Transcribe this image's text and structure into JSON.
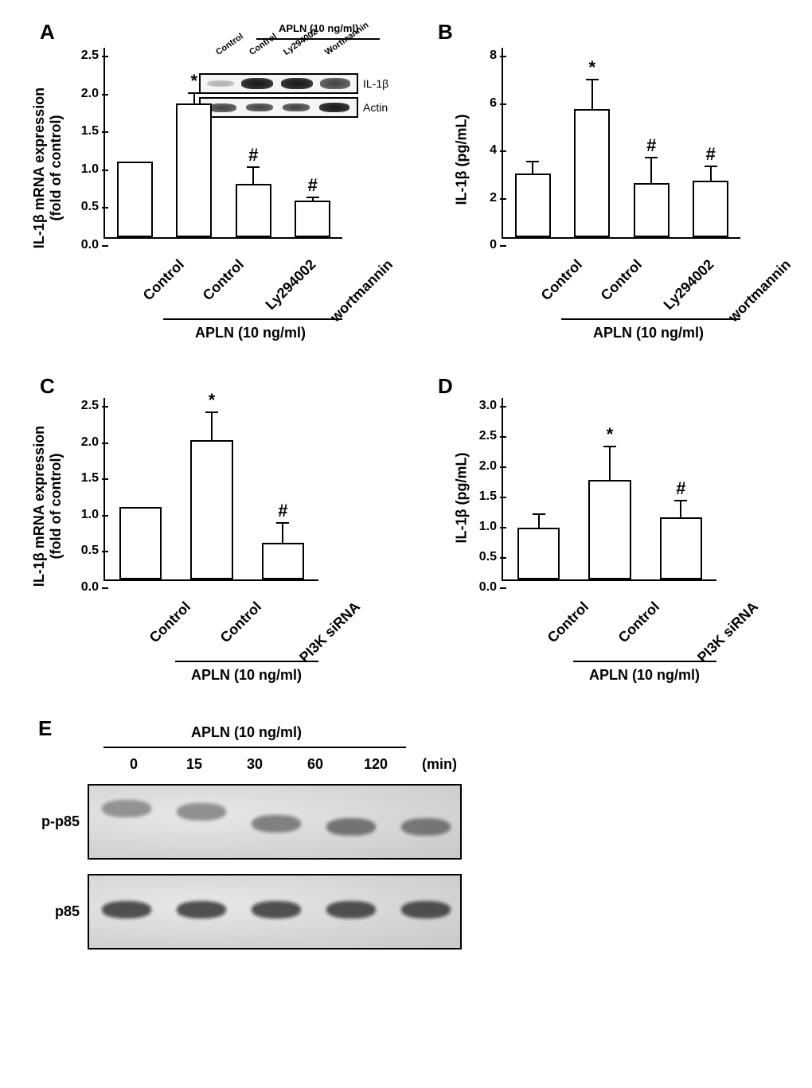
{
  "figure": {
    "background": "#ffffff",
    "font_family": "Arial",
    "text_color": "#000000"
  },
  "panelA": {
    "label": "A",
    "type": "bar",
    "ylabel_line1": "IL-1β mRNA expression",
    "ylabel_line2": "(fold of control)",
    "ylim": [
      0,
      2.5
    ],
    "ytick_step": 0.5,
    "yticks": [
      "0.0",
      "0.5",
      "1.0",
      "1.5",
      "2.0",
      "2.5"
    ],
    "categories": [
      "Control",
      "Control",
      "Ly294002",
      "wortmannin"
    ],
    "values": [
      1.0,
      1.77,
      0.7,
      0.48
    ],
    "errors": [
      0,
      0.13,
      0.22,
      0.05
    ],
    "sig_marks": [
      "",
      "*",
      "#",
      "#"
    ],
    "bar_color": "#ffffff",
    "bar_border": "#000000",
    "bracket_label": "APLN (10 ng/ml)",
    "inset_blot": {
      "bracket_label": "APLN (10 ng/ml)",
      "cols": [
        "Control",
        "Control",
        "Ly294002",
        "Wortmannin"
      ],
      "rows": [
        {
          "label": "IL-1β",
          "intensities": [
            "faint",
            "dark",
            "dark",
            "medium"
          ]
        },
        {
          "label": "Actin",
          "intensities": [
            "medium",
            "medium",
            "medium",
            "dark"
          ]
        }
      ]
    }
  },
  "panelB": {
    "label": "B",
    "type": "bar",
    "ylabel": "IL-1β (pg/mL)",
    "ylim": [
      0,
      8
    ],
    "ytick_step": 2,
    "yticks": [
      "0",
      "2",
      "4",
      "6",
      "8"
    ],
    "categories": [
      "Control",
      "Control",
      "Ly294002",
      "wortmannin"
    ],
    "values": [
      2.7,
      5.4,
      2.3,
      2.4
    ],
    "errors": [
      0.5,
      1.25,
      1.05,
      0.6
    ],
    "sig_marks": [
      "",
      "*",
      "#",
      "#"
    ],
    "bracket_label": "APLN (10 ng/ml)"
  },
  "panelC": {
    "label": "C",
    "type": "bar",
    "ylabel_line1": "IL-1β mRNA expression",
    "ylabel_line2": "(fold of control)",
    "ylim": [
      0,
      2.5
    ],
    "ytick_step": 0.5,
    "yticks": [
      "0.0",
      "0.5",
      "1.0",
      "1.5",
      "2.0",
      "2.5"
    ],
    "categories": [
      "Control",
      "Control",
      "PI3K siRNA"
    ],
    "values": [
      1.0,
      1.92,
      0.51
    ],
    "errors": [
      0,
      0.38,
      0.27
    ],
    "sig_marks": [
      "",
      "*",
      "#"
    ],
    "bracket_label": "APLN (10 ng/ml)"
  },
  "panelD": {
    "label": "D",
    "type": "bar",
    "ylabel": "IL-1β (pg/mL)",
    "ylim": [
      0,
      3.0
    ],
    "ytick_step": 0.5,
    "yticks": [
      "0.0",
      "0.5",
      "1.0",
      "1.5",
      "2.0",
      "2.5",
      "3.0"
    ],
    "categories": [
      "Control",
      "Control",
      "PI3K siRNA"
    ],
    "values": [
      0.86,
      1.65,
      1.02
    ],
    "errors": [
      0.22,
      0.55,
      0.28
    ],
    "sig_marks": [
      "",
      "*",
      "#"
    ],
    "bracket_label": "APLN (10 ng/ml)"
  },
  "panelE": {
    "label": "E",
    "type": "western_blot_timecourse",
    "treatment_label": "APLN (10 ng/ml)",
    "time_unit": "(min)",
    "timepoints": [
      "0",
      "15",
      "30",
      "60",
      "120"
    ],
    "rows": [
      {
        "label": "p-p85",
        "band_color": "#5a5a5a",
        "bands": [
          {
            "intensity": 0.35,
            "y_offset": 0.3
          },
          {
            "intensity": 0.4,
            "y_offset": 0.35
          },
          {
            "intensity": 0.55,
            "y_offset": 0.5
          },
          {
            "intensity": 0.7,
            "y_offset": 0.55
          },
          {
            "intensity": 0.65,
            "y_offset": 0.55
          }
        ]
      },
      {
        "label": "p85",
        "band_color": "#3a3a3a",
        "bands": [
          {
            "intensity": 0.8,
            "y_offset": 0.45
          },
          {
            "intensity": 0.8,
            "y_offset": 0.45
          },
          {
            "intensity": 0.8,
            "y_offset": 0.45
          },
          {
            "intensity": 0.8,
            "y_offset": 0.45
          },
          {
            "intensity": 0.8,
            "y_offset": 0.45
          }
        ]
      }
    ]
  }
}
